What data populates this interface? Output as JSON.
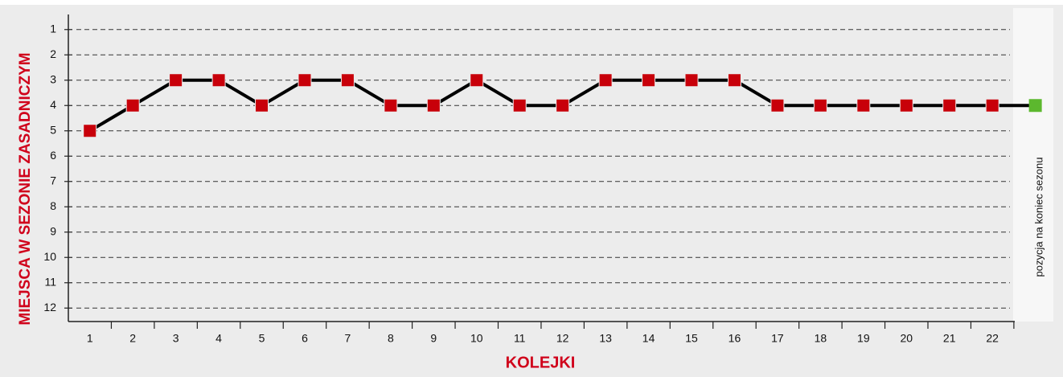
{
  "chart_data": {
    "type": "line",
    "y_label": "MIEJSCA W SEZONIE ZASADNICZYM",
    "x_label": "KOLEJKI",
    "categories": [
      "1",
      "2",
      "3",
      "4",
      "5",
      "6",
      "7",
      "8",
      "9",
      "10",
      "11",
      "12",
      "13",
      "14",
      "15",
      "16",
      "17",
      "18",
      "19",
      "20",
      "21",
      "22"
    ],
    "series": [
      {
        "color": "#c8000a",
        "values": [
          5,
          4,
          3,
          3,
          4,
          3,
          3,
          4,
          4,
          3,
          4,
          4,
          3,
          3,
          3,
          3,
          4,
          4,
          4,
          4,
          4,
          4
        ]
      }
    ],
    "final": {
      "label": "pozycja na koniec sezonu",
      "value": 4,
      "color": "#5cb82e"
    },
    "line_color": "#000000",
    "ylim": [
      12.5,
      0.5
    ],
    "yticks": [
      1,
      2,
      3,
      4,
      5,
      6,
      7,
      8,
      9,
      10,
      11,
      12
    ],
    "grid": true
  }
}
